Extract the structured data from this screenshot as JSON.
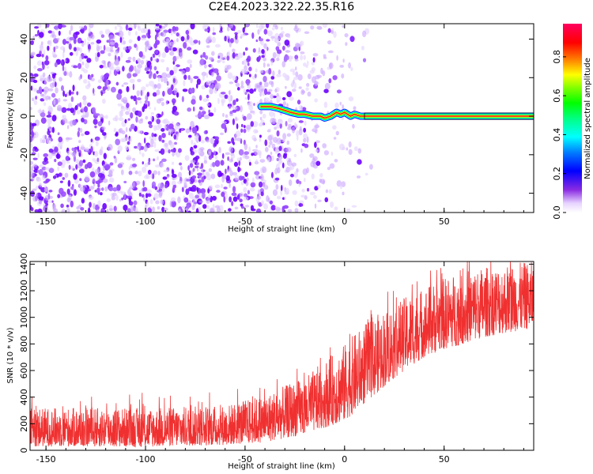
{
  "title": "C2E4.2023.322.22.35.R16",
  "colors": {
    "snr_line": "#f03030",
    "dot_purple": "#7a1aff",
    "frame": "#000000"
  },
  "colorbar": {
    "label": "Normalized spectral amplitude",
    "ticks": [
      "0.0",
      "0.2",
      "0.4",
      "0.6",
      "0.8"
    ],
    "tick_values": [
      0.0,
      0.2,
      0.4,
      0.6,
      0.8
    ],
    "range": [
      0,
      0.97
    ]
  },
  "chart_data": [
    {
      "type": "heatmap",
      "name": "spectrogram",
      "xlabel": "Height of straight line (km)",
      "ylabel": "Frequency (Hz)",
      "xlim": [
        -158,
        95
      ],
      "ylim": [
        -50,
        48
      ],
      "x_ticks": [
        -150,
        -100,
        -50,
        0,
        50
      ],
      "x_tick_labels": [
        "-150",
        "-100",
        "-50",
        "0",
        "50"
      ],
      "y_ticks": [
        -40,
        -20,
        0,
        20,
        40
      ],
      "y_tick_labels": [
        "-40",
        "-20",
        "0",
        "20",
        "40"
      ],
      "noise_region_x": [
        -158,
        15
      ],
      "signal_trace": {
        "x": [
          -42,
          -37,
          -33,
          -30,
          -27,
          -23,
          -20,
          -16,
          -12,
          -10,
          -7,
          -4,
          -2,
          0,
          3,
          5,
          8,
          12,
          20,
          40,
          60,
          80,
          95
        ],
        "y": [
          5,
          5,
          4,
          3,
          2,
          1,
          1,
          0,
          0,
          -1,
          0,
          2,
          1,
          2,
          0,
          1,
          0,
          0,
          0,
          0,
          0,
          0,
          0
        ]
      },
      "colorscale": "rainbow (white to purple to red)"
    },
    {
      "type": "line",
      "name": "snr",
      "xlabel": "Height of straight line (km)",
      "ylabel": "SNR (10 * v/v)",
      "xlim": [
        -158,
        95
      ],
      "ylim": [
        0,
        1420
      ],
      "x_ticks": [
        -150,
        -100,
        -50,
        0,
        50
      ],
      "x_tick_labels": [
        "-150",
        "-100",
        "-50",
        "0",
        "50"
      ],
      "y_ticks": [
        0,
        200,
        400,
        600,
        800,
        1000,
        1200,
        1400
      ],
      "y_tick_labels": [
        "0",
        "200",
        "400",
        "600",
        "800",
        "1000",
        "1200",
        "1400"
      ],
      "envelope": {
        "x": [
          -158,
          -100,
          -60,
          -40,
          -20,
          0,
          10,
          20,
          30,
          40,
          50,
          60,
          70,
          80,
          95
        ],
        "low": [
          30,
          25,
          40,
          60,
          120,
          220,
          350,
          480,
          600,
          700,
          760,
          800,
          850,
          880,
          920
        ],
        "high": [
          320,
          320,
          340,
          420,
          550,
          800,
          950,
          1060,
          1150,
          1230,
          1300,
          1350,
          1380,
          1400,
          1420
        ]
      }
    }
  ]
}
